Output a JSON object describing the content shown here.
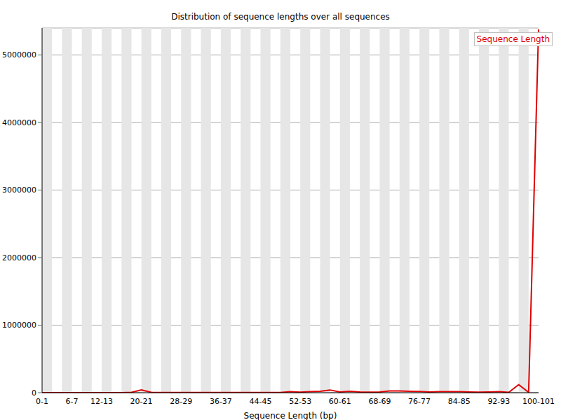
{
  "chart_data": {
    "type": "line",
    "title": "Distribution of sequence lengths over all sequences",
    "x_label": "Sequence Length (bp)",
    "categories": [
      "0-1",
      null,
      null,
      "6-7",
      null,
      null,
      "12-13",
      null,
      null,
      null,
      "20-21",
      null,
      null,
      null,
      "28-29",
      null,
      null,
      null,
      "36-37",
      null,
      null,
      null,
      "44-45",
      null,
      null,
      null,
      "52-53",
      null,
      null,
      null,
      "60-61",
      null,
      null,
      null,
      "68-69",
      null,
      null,
      null,
      "76-77",
      null,
      null,
      null,
      "84-85",
      null,
      null,
      null,
      "92-93",
      null,
      null,
      null,
      "100-101"
    ],
    "series": [
      {
        "name": "Sequence Length",
        "color": "#dd0000",
        "values": [
          0,
          0,
          0,
          0,
          0,
          0,
          0,
          0,
          0,
          5000,
          40000,
          5000,
          3000,
          3000,
          3000,
          3000,
          3000,
          3000,
          3000,
          3000,
          3000,
          3000,
          3000,
          3000,
          3000,
          15000,
          8000,
          15000,
          20000,
          40000,
          10000,
          20000,
          10000,
          8000,
          10000,
          25000,
          25000,
          20000,
          18000,
          10000,
          15000,
          15000,
          15000,
          10000,
          8000,
          10000,
          15000,
          5000,
          120000,
          5000,
          5380000
        ]
      }
    ],
    "ylim": [
      0,
      5400000
    ],
    "yticks": [
      0,
      1000000,
      2000000,
      3000000,
      4000000,
      5000000
    ],
    "grid": true,
    "legend": "upper right"
  }
}
